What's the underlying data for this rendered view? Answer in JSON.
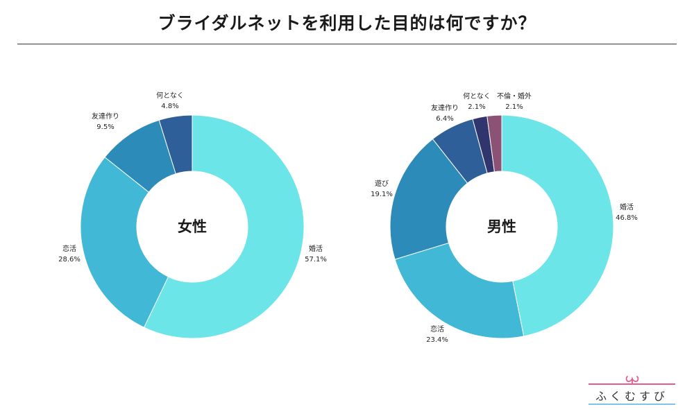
{
  "title": "ブライダルネットを利用した目的は何ですか？",
  "logo_text": "ふくむすび",
  "colors": {
    "konkatsu": "#6ce5e8",
    "renkatsu": "#41b8d5",
    "asobi": "#2d8bba",
    "tomodachi": "#2d8bba",
    "nantonaku": "#2f5f98",
    "nantonaku_male": "#31356e",
    "furin": "#8c5275"
  },
  "chart_data": [
    {
      "type": "pie",
      "variant": "donut",
      "center_label": "女性",
      "slices": [
        {
          "label": "婚活",
          "value": 57.1,
          "display": "57.1%",
          "color_key": "konkatsu"
        },
        {
          "label": "恋活",
          "value": 28.6,
          "display": "28.6%",
          "color_key": "renkatsu"
        },
        {
          "label": "友達作り",
          "value": 9.5,
          "display": "9.5%",
          "color_key": "tomodachi"
        },
        {
          "label": "何となく",
          "value": 4.8,
          "display": "4.8%",
          "color_key": "nantonaku"
        }
      ]
    },
    {
      "type": "pie",
      "variant": "donut",
      "center_label": "男性",
      "slices": [
        {
          "label": "婚活",
          "value": 46.8,
          "display": "46.8%",
          "color_key": "konkatsu"
        },
        {
          "label": "恋活",
          "value": 23.4,
          "display": "23.4%",
          "color_key": "renkatsu"
        },
        {
          "label": "遊び",
          "value": 19.1,
          "display": "19.1%",
          "color_key": "asobi"
        },
        {
          "label": "友達作り",
          "value": 6.4,
          "display": "6.4%",
          "color_key": "nantonaku"
        },
        {
          "label": "何となく",
          "value": 2.1,
          "display": "2.1%",
          "color_key": "nantonaku_male"
        },
        {
          "label": "不倫・婚外",
          "value": 2.1,
          "display": "2.1%",
          "color_key": "furin"
        }
      ]
    }
  ]
}
